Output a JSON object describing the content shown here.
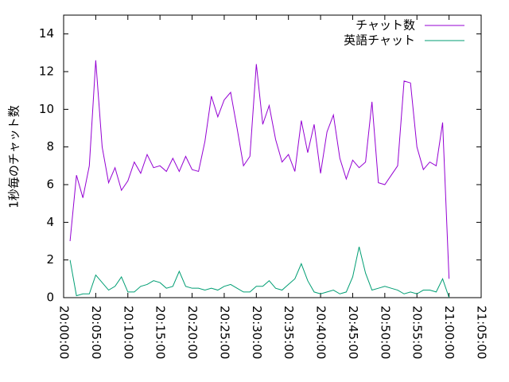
{
  "chart_data": {
    "type": "line",
    "y_label": "1秒毎のチャット数",
    "x": [
      "20:01:00",
      "20:02:00",
      "20:03:00",
      "20:04:00",
      "20:05:00",
      "20:06:00",
      "20:07:00",
      "20:08:00",
      "20:09:00",
      "20:10:00",
      "20:11:00",
      "20:12:00",
      "20:13:00",
      "20:14:00",
      "20:15:00",
      "20:16:00",
      "20:17:00",
      "20:18:00",
      "20:19:00",
      "20:20:00",
      "20:21:00",
      "20:22:00",
      "20:23:00",
      "20:24:00",
      "20:25:00",
      "20:26:00",
      "20:27:00",
      "20:28:00",
      "20:29:00",
      "20:30:00",
      "20:31:00",
      "20:32:00",
      "20:33:00",
      "20:34:00",
      "20:35:00",
      "20:36:00",
      "20:37:00",
      "20:38:00",
      "20:39:00",
      "20:40:00",
      "20:41:00",
      "20:42:00",
      "20:43:00",
      "20:44:00",
      "20:45:00",
      "20:46:00",
      "20:47:00",
      "20:48:00",
      "20:49:00",
      "20:50:00",
      "20:51:00",
      "20:52:00",
      "20:53:00",
      "20:54:00",
      "20:55:00",
      "20:56:00",
      "20:57:00",
      "20:58:00",
      "20:59:00",
      "21:00:00"
    ],
    "series": [
      {
        "name": "チャット数",
        "color": "#9400d3",
        "values": [
          3.0,
          6.5,
          5.3,
          7.0,
          12.6,
          8.0,
          6.1,
          6.9,
          5.7,
          6.2,
          7.2,
          6.6,
          7.6,
          6.9,
          7.0,
          6.7,
          7.4,
          6.7,
          7.5,
          6.8,
          6.7,
          8.3,
          10.7,
          9.6,
          10.5,
          10.9,
          9.0,
          7.0,
          7.5,
          12.4,
          9.2,
          10.2,
          8.4,
          7.2,
          7.6,
          6.7,
          9.4,
          7.7,
          9.2,
          6.6,
          8.8,
          9.7,
          7.4,
          6.3,
          7.3,
          6.9,
          7.2,
          10.4,
          6.1,
          6.0,
          6.5,
          7.0,
          11.5,
          11.4,
          8.0,
          6.8,
          7.2,
          7.0,
          9.3,
          1.0
        ]
      },
      {
        "name": "英語チャット",
        "color": "#009e73",
        "values": [
          2.0,
          0.1,
          0.2,
          0.2,
          1.2,
          0.8,
          0.4,
          0.6,
          1.1,
          0.3,
          0.3,
          0.6,
          0.7,
          0.9,
          0.8,
          0.5,
          0.6,
          1.4,
          0.6,
          0.5,
          0.5,
          0.4,
          0.5,
          0.4,
          0.6,
          0.7,
          0.5,
          0.3,
          0.3,
          0.6,
          0.6,
          0.9,
          0.5,
          0.4,
          0.7,
          1.0,
          1.8,
          0.9,
          0.3,
          0.2,
          0.3,
          0.4,
          0.2,
          0.3,
          1.1,
          2.7,
          1.3,
          0.4,
          0.5,
          0.6,
          0.5,
          0.4,
          0.2,
          0.3,
          0.2,
          0.4,
          0.4,
          0.3,
          1.0,
          0.0
        ]
      }
    ],
    "xlim": [
      "20:00:00",
      "21:05:00"
    ],
    "xticks": [
      "20:00:00",
      "20:05:00",
      "20:10:00",
      "20:15:00",
      "20:20:00",
      "20:25:00",
      "20:30:00",
      "20:35:00",
      "20:40:00",
      "20:45:00",
      "20:50:00",
      "20:55:00",
      "21:00:00",
      "21:05:00"
    ],
    "ylim": [
      0,
      15
    ],
    "yticks": [
      0,
      2,
      4,
      6,
      8,
      10,
      12,
      14
    ],
    "legend": "top-right"
  }
}
